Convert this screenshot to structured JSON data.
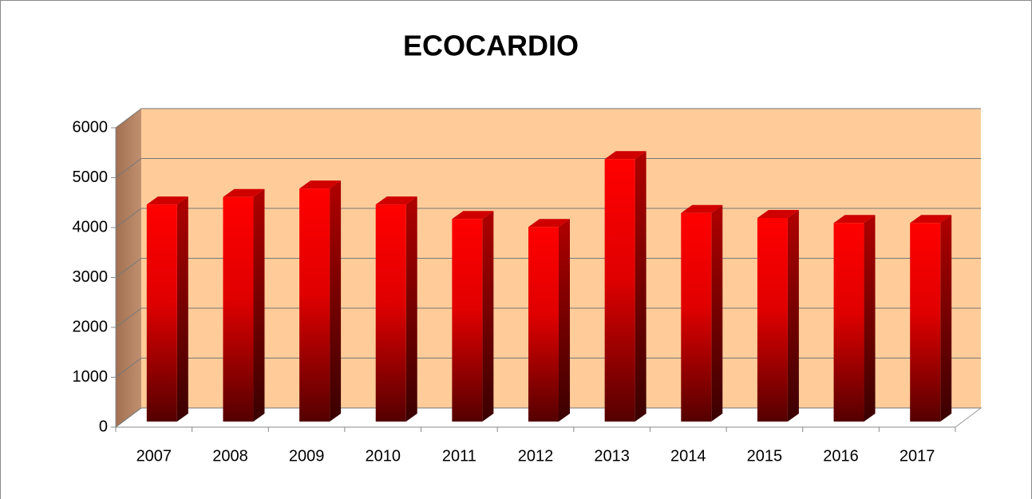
{
  "chart_data": {
    "type": "bar3d",
    "title": "ECOCARDIO",
    "categories": [
      "2007",
      "2008",
      "2009",
      "2010",
      "2011",
      "2012",
      "2013",
      "2014",
      "2015",
      "2016",
      "2017"
    ],
    "values": [
      4350,
      4500,
      4670,
      4350,
      4060,
      3900,
      5260,
      4180,
      4080,
      3980,
      3980
    ],
    "color": "#ff0000",
    "ylim": [
      0,
      6000
    ],
    "yticks": [
      0,
      1000,
      2000,
      3000,
      4000,
      5000,
      6000
    ],
    "grid": true
  }
}
